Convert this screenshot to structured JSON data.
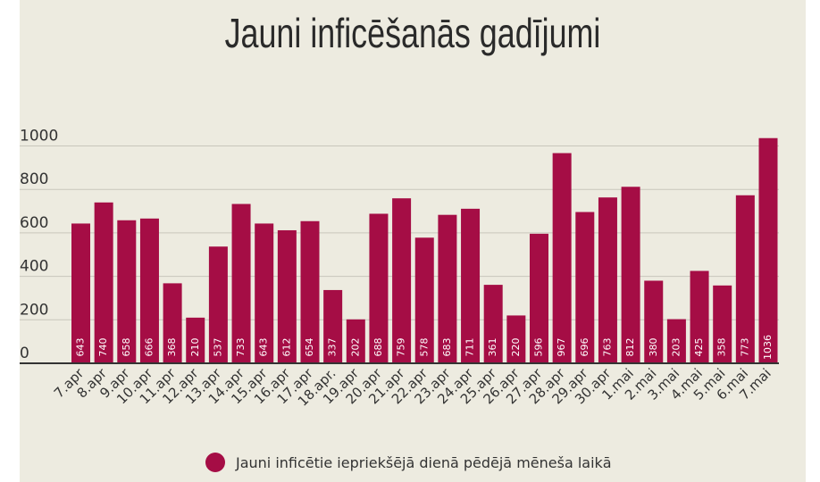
{
  "chart_data": {
    "type": "bar",
    "title": "Jauni inficēšanās gadījumi",
    "categories": [
      "7.apr",
      "8.apr",
      "9.apr",
      "10.apr",
      "11.apr",
      "12.apr",
      "13.apr",
      "14.apr",
      "15.apr",
      "16.apr",
      "17.apr",
      "18.apr.",
      "19.apr",
      "20.apr",
      "21.apr",
      "22.apr",
      "23.apr",
      "24.apr",
      "25.apr",
      "26.apr",
      "27.apr",
      "28.apr",
      "29.apr",
      "30.apr",
      "1.mai",
      "2.mai",
      "3.mai",
      "4.mai",
      "5.mai",
      "6.mai",
      "7.mai"
    ],
    "series": [
      {
        "name": "Jauni inficētie iepriekšējā dienā pēdējā mēneša laikā",
        "values": [
          643,
          740,
          658,
          666,
          368,
          210,
          537,
          733,
          643,
          612,
          654,
          337,
          202,
          688,
          759,
          578,
          683,
          711,
          361,
          220,
          596,
          967,
          696,
          763,
          812,
          380,
          203,
          425,
          358,
          773,
          1036
        ]
      }
    ],
    "yticks": [
      0,
      200,
      400,
      600,
      800,
      1000
    ],
    "ylim": [
      0,
      1050
    ],
    "grid": true,
    "legend_position": "bottom",
    "colors": {
      "bar": "#a50d45",
      "grid": "#c8c6bb",
      "background": "#edebe0"
    }
  }
}
